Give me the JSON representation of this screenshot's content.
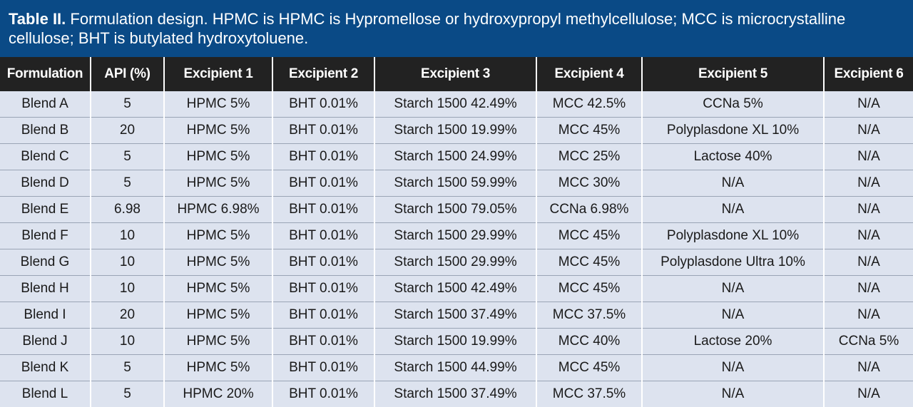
{
  "caption": {
    "label": "Table II.",
    "text": " Formulation design. HPMC is HPMC is Hypromellose or hydroxypropyl methylcellulose; MCC is microcrystalline cellulose; BHT is butylated hydroxytoluene."
  },
  "table": {
    "headers": [
      "Formulation",
      "API (%)",
      "Excipient 1",
      "Excipient 2",
      "Excipient 3",
      "Excipient 4",
      "Excipient 5",
      "Excipient 6"
    ],
    "rows": [
      [
        "Blend A",
        "5",
        "HPMC 5%",
        "BHT 0.01%",
        "Starch 1500 42.49%",
        "MCC 42.5%",
        "CCNa 5%",
        "N/A"
      ],
      [
        "Blend B",
        "20",
        "HPMC 5%",
        "BHT 0.01%",
        "Starch 1500 19.99%",
        "MCC 45%",
        "Polyplasdone XL 10%",
        "N/A"
      ],
      [
        "Blend C",
        "5",
        "HPMC 5%",
        "BHT 0.01%",
        "Starch 1500 24.99%",
        "MCC 25%",
        "Lactose 40%",
        "N/A"
      ],
      [
        "Blend D",
        "5",
        "HPMC 5%",
        "BHT 0.01%",
        "Starch 1500 59.99%",
        "MCC 30%",
        "N/A",
        "N/A"
      ],
      [
        "Blend E",
        "6.98",
        "HPMC 6.98%",
        "BHT 0.01%",
        "Starch 1500 79.05%",
        "CCNa 6.98%",
        "N/A",
        "N/A"
      ],
      [
        "Blend F",
        "10",
        "HPMC 5%",
        "BHT 0.01%",
        "Starch 1500 29.99%",
        "MCC 45%",
        "Polyplasdone XL 10%",
        "N/A"
      ],
      [
        "Blend G",
        "10",
        "HPMC 5%",
        "BHT 0.01%",
        "Starch 1500 29.99%",
        "MCC 45%",
        "Polyplasdone Ultra 10%",
        "N/A"
      ],
      [
        "Blend H",
        "10",
        "HPMC 5%",
        "BHT 0.01%",
        "Starch 1500 42.49%",
        "MCC 45%",
        "N/A",
        "N/A"
      ],
      [
        "Blend I",
        "20",
        "HPMC 5%",
        "BHT 0.01%",
        "Starch 1500 37.49%",
        "MCC 37.5%",
        "N/A",
        "N/A"
      ],
      [
        "Blend J",
        "10",
        "HPMC 5%",
        "BHT 0.01%",
        "Starch 1500 19.99%",
        "MCC 40%",
        "Lactose 20%",
        "CCNa 5%"
      ],
      [
        "Blend K",
        "5",
        "HPMC 5%",
        "BHT 0.01%",
        "Starch 1500 44.99%",
        "MCC 45%",
        "N/A",
        "N/A"
      ],
      [
        "Blend L",
        "5",
        "HPMC 20%",
        "BHT 0.01%",
        "Starch 1500 37.49%",
        "MCC 37.5%",
        "N/A",
        "N/A"
      ]
    ]
  },
  "colors": {
    "caption_bg": "#0a4a86",
    "header_bg": "#222222",
    "cell_bg": "#dde3ef"
  }
}
